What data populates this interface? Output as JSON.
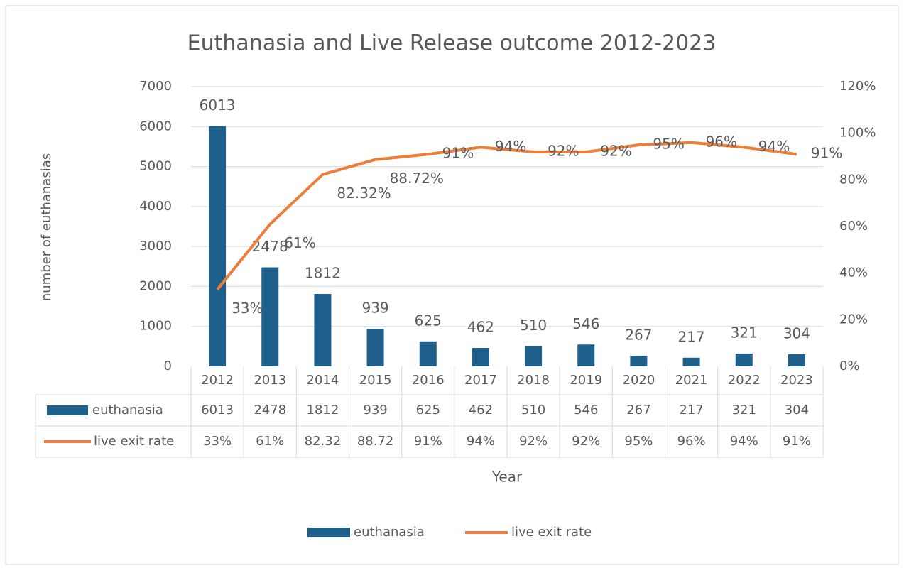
{
  "chart_data": {
    "type": "bar_line",
    "title": "Euthanasia and Live Release outcome 2012-2023",
    "y_label": "number of euthanasias",
    "x_label": "Year",
    "categories": [
      "2012",
      "2013",
      "2014",
      "2015",
      "2016",
      "2017",
      "2018",
      "2019",
      "2020",
      "2021",
      "2022",
      "2023"
    ],
    "ylim": [
      0,
      7000
    ],
    "yticks": [
      0,
      1000,
      2000,
      3000,
      4000,
      5000,
      6000,
      7000
    ],
    "y2lim": [
      0,
      120
    ],
    "y2ticks": [
      {
        "value": 0,
        "label": "0%"
      },
      {
        "value": 20,
        "label": "20%"
      },
      {
        "value": 40,
        "label": "40%"
      },
      {
        "value": 60,
        "label": "60%"
      },
      {
        "value": 80,
        "label": "80%"
      },
      {
        "value": 100,
        "label": "100%"
      },
      {
        "value": 120,
        "label": "120%"
      }
    ],
    "grid": true,
    "legend": "bottom",
    "series": [
      {
        "name": "euthanasia",
        "type": "bar",
        "color": "#1f5f8b",
        "values": [
          6013,
          2478,
          1812,
          939,
          625,
          462,
          510,
          546,
          267,
          217,
          321,
          304
        ]
      },
      {
        "name": "live exit rate",
        "type": "line",
        "axis": "y2",
        "color": "#ee7d3a",
        "values": [
          33,
          61,
          82.32,
          88.72,
          91,
          94,
          92,
          92,
          95,
          96,
          94,
          91
        ],
        "value_labels": [
          "33%",
          "61%",
          "82.32%",
          "88.72%",
          "91%",
          "94%",
          "92%",
          "92%",
          "95%",
          "96%",
          "94%",
          "91%"
        ],
        "table_labels": [
          "33%",
          "61%",
          "82.32",
          "88.72",
          "91%",
          "94%",
          "92%",
          "92%",
          "95%",
          "96%",
          "94%",
          "91%"
        ]
      }
    ]
  }
}
